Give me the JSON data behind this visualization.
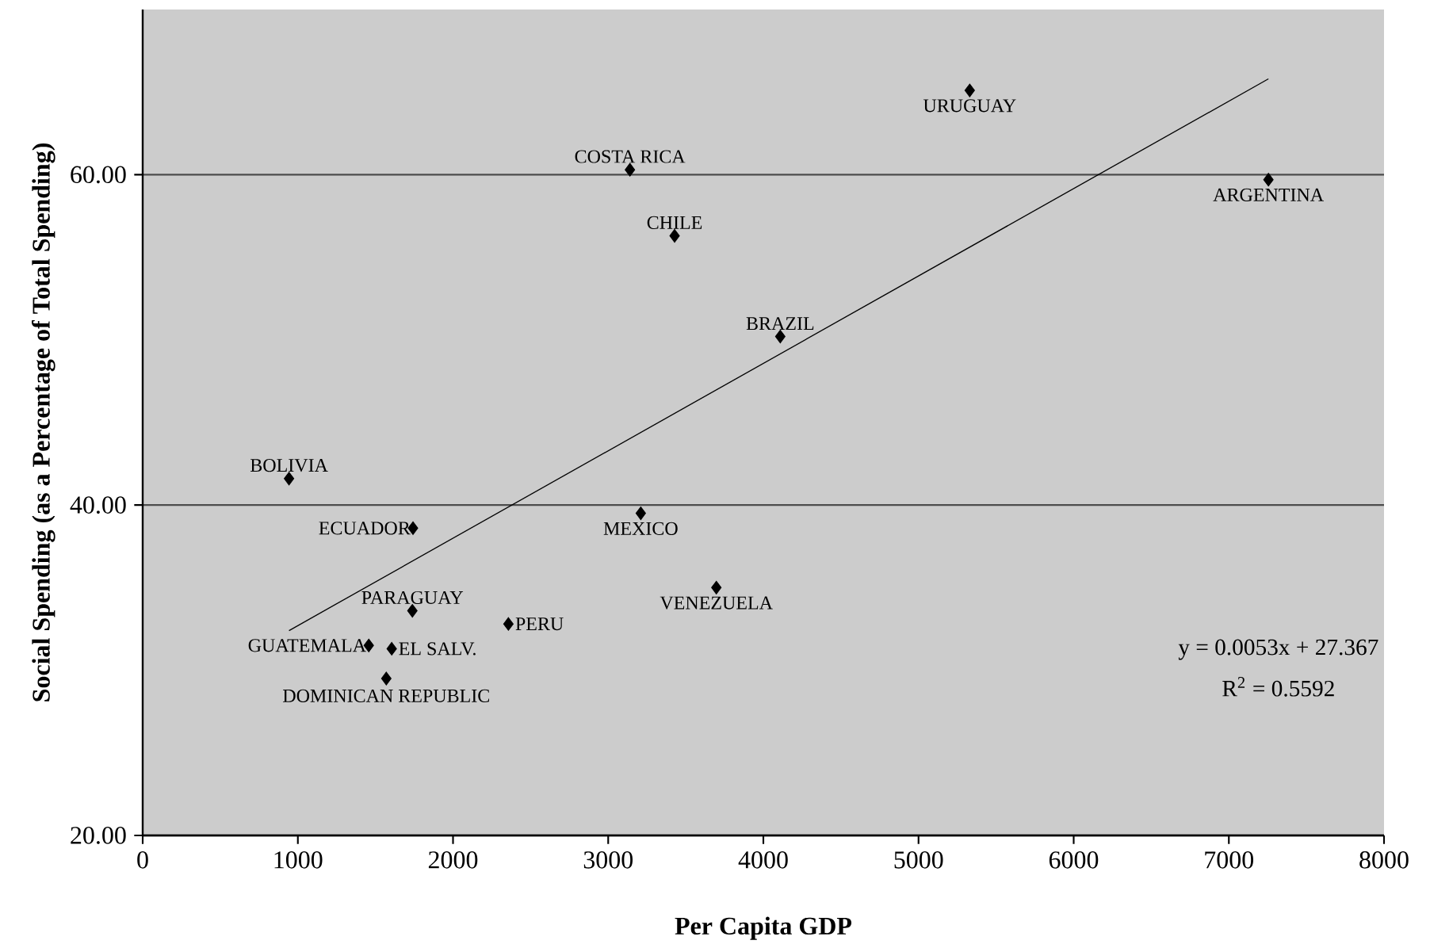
{
  "chart_data": {
    "type": "scatter",
    "xlabel": "Per Capita GDP",
    "ylabel": "Social Spending (as a Percentage of Total Spending)",
    "xlim": [
      0,
      8000
    ],
    "xticks": [
      0,
      1000,
      2000,
      3000,
      4000,
      5000,
      6000,
      7000,
      8000
    ],
    "ylim": [
      20,
      70
    ],
    "yticks": [
      {
        "value": 20,
        "label": "20.00"
      },
      {
        "value": 40,
        "label": "40.00"
      },
      {
        "value": 60,
        "label": "60.00"
      }
    ],
    "grid": "y",
    "marker": "diamond",
    "series": [
      {
        "color": "#000000",
        "x": [
          5330,
          3140,
          7255,
          3428,
          4109,
          943,
          1742,
          3210,
          3697,
          1738,
          2357,
          1457,
          1605,
          1570
        ],
        "values": [
          65.1,
          60.3,
          59.7,
          56.3,
          50.2,
          41.6,
          38.6,
          39.5,
          35.0,
          33.6,
          32.8,
          31.5,
          31.3,
          29.5
        ]
      },
      {
        "type": "line",
        "color": "#000000",
        "marker": "none",
        "x": [
          943,
          7255
        ],
        "values": [
          32.4,
          65.8
        ]
      }
    ],
    "annotations": [
      {
        "text": "URUGUAY",
        "x": 5330,
        "y": 65.1
      },
      {
        "text": "COSTA RICA",
        "x": 3140,
        "y": 60.3
      },
      {
        "text": "ARGENTINA",
        "x": 7255,
        "y": 59.7
      },
      {
        "text": "CHILE",
        "x": 3428,
        "y": 56.3
      },
      {
        "text": "BRAZIL",
        "x": 4109,
        "y": 50.2
      },
      {
        "text": "BOLIVIA",
        "x": 943,
        "y": 41.6
      },
      {
        "text": "ECUADOR",
        "x": 1742,
        "y": 38.6
      },
      {
        "text": "MEXICO",
        "x": 3210,
        "y": 39.5
      },
      {
        "text": "VENEZUELA",
        "x": 3697,
        "y": 35.0
      },
      {
        "text": "PARAGUAY",
        "x": 1738,
        "y": 33.6
      },
      {
        "text": "PERU",
        "x": 2357,
        "y": 32.8
      },
      {
        "text": "GUATEMALA",
        "x": 1457,
        "y": 31.5
      },
      {
        "text": "EL SALV.",
        "x": 1605,
        "y": 31.3
      },
      {
        "text": "DOMINICAN REPUBLIC",
        "x": 1570,
        "y": 29.5
      },
      "y = 0.0053x + 27.367",
      "R$^{2}$ = 0.5592"
    ]
  }
}
